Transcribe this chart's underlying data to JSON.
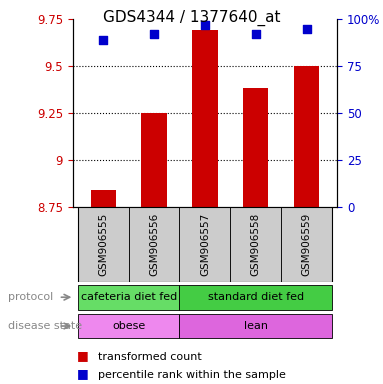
{
  "title": "GDS4344 / 1377640_at",
  "samples": [
    "GSM906555",
    "GSM906556",
    "GSM906557",
    "GSM906558",
    "GSM906559"
  ],
  "bar_values": [
    8.84,
    9.25,
    9.695,
    9.385,
    9.5
  ],
  "percentile_values": [
    0.89,
    0.92,
    0.97,
    0.92,
    0.95
  ],
  "ylim_left": [
    8.75,
    9.75
  ],
  "ylim_right": [
    0.0,
    1.0
  ],
  "yticks_left": [
    8.75,
    9.0,
    9.25,
    9.5,
    9.75
  ],
  "ytick_labels_left": [
    "8.75",
    "9",
    "9.25",
    "9.5",
    "9.75"
  ],
  "yticks_right": [
    0.0,
    0.25,
    0.5,
    0.75,
    1.0
  ],
  "ytick_labels_right": [
    "0",
    "25",
    "50",
    "75",
    "100%"
  ],
  "bar_color": "#cc0000",
  "dot_color": "#0000cc",
  "bar_width": 0.5,
  "protocol_groups": [
    {
      "label": "cafeteria diet fed",
      "xstart": -0.5,
      "xend": 1.5,
      "color": "#66dd66"
    },
    {
      "label": "standard diet fed",
      "xstart": 1.5,
      "xend": 4.5,
      "color": "#44cc44"
    }
  ],
  "disease_groups": [
    {
      "label": "obese",
      "xstart": -0.5,
      "xend": 1.5,
      "color": "#ee88ee"
    },
    {
      "label": "lean",
      "xstart": 1.5,
      "xend": 4.5,
      "color": "#dd66dd"
    }
  ],
  "protocol_label": "protocol",
  "disease_label": "disease state",
  "legend_items": [
    {
      "label": "transformed count",
      "color": "#cc0000"
    },
    {
      "label": "percentile rank within the sample",
      "color": "#0000cc"
    }
  ],
  "title_fontsize": 11,
  "tick_fontsize": 8.5,
  "sample_fontsize": 7.5,
  "annot_fontsize": 8,
  "legend_fontsize": 8
}
